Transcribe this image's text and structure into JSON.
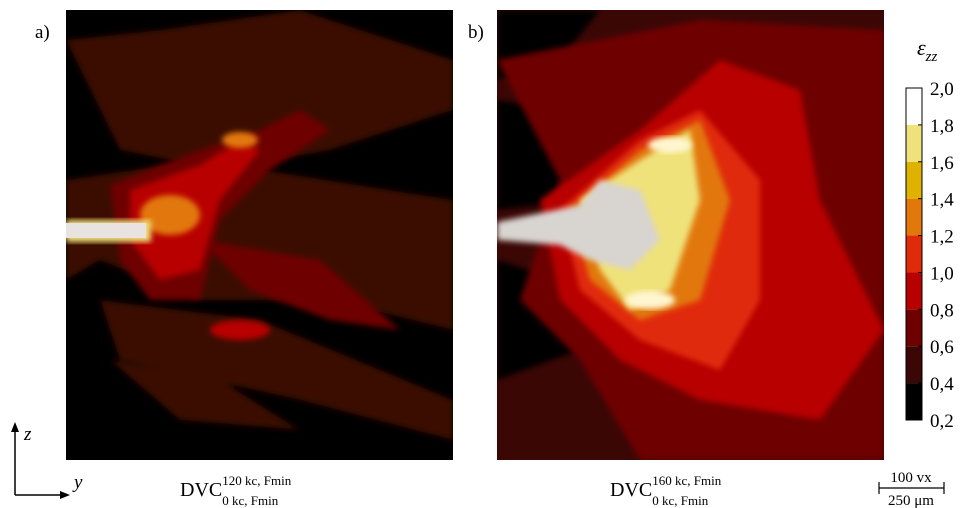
{
  "panels": [
    {
      "label": "a)",
      "caption": {
        "main": "DVC",
        "sup": "120 kc, Fmin",
        "sub": "0 kc, Fmin"
      }
    },
    {
      "label": "b)",
      "caption": {
        "main": "DVC",
        "sup": "160 kc, Fmin",
        "sub": "0 kc, Fmin"
      }
    }
  ],
  "colorbar": {
    "symbol": "ε",
    "subscript": "zz",
    "ticks": [
      {
        "value": 0.2,
        "label": "0,2"
      },
      {
        "value": 0.4,
        "label": "0,4"
      },
      {
        "value": 0.6,
        "label": "0,6"
      },
      {
        "value": 0.8,
        "label": "0,8"
      },
      {
        "value": 1.0,
        "label": "1,0"
      },
      {
        "value": 1.2,
        "label": "1,2"
      },
      {
        "value": 1.4,
        "label": "1,4"
      },
      {
        "value": 1.6,
        "label": "1,6"
      },
      {
        "value": 1.8,
        "label": "1,8"
      },
      {
        "value": 2.0,
        "label": "2,0"
      }
    ],
    "colors": [
      "#000000",
      "#3a0705",
      "#6e0000",
      "#b80000",
      "#e02a0a",
      "#e2780c",
      "#e0b200",
      "#efe27a",
      "#ffffff"
    ]
  },
  "axes": {
    "vertical": "z",
    "horizontal": "y"
  },
  "scale_bar": {
    "top": "100 vx",
    "bottom": "250 μm"
  }
}
